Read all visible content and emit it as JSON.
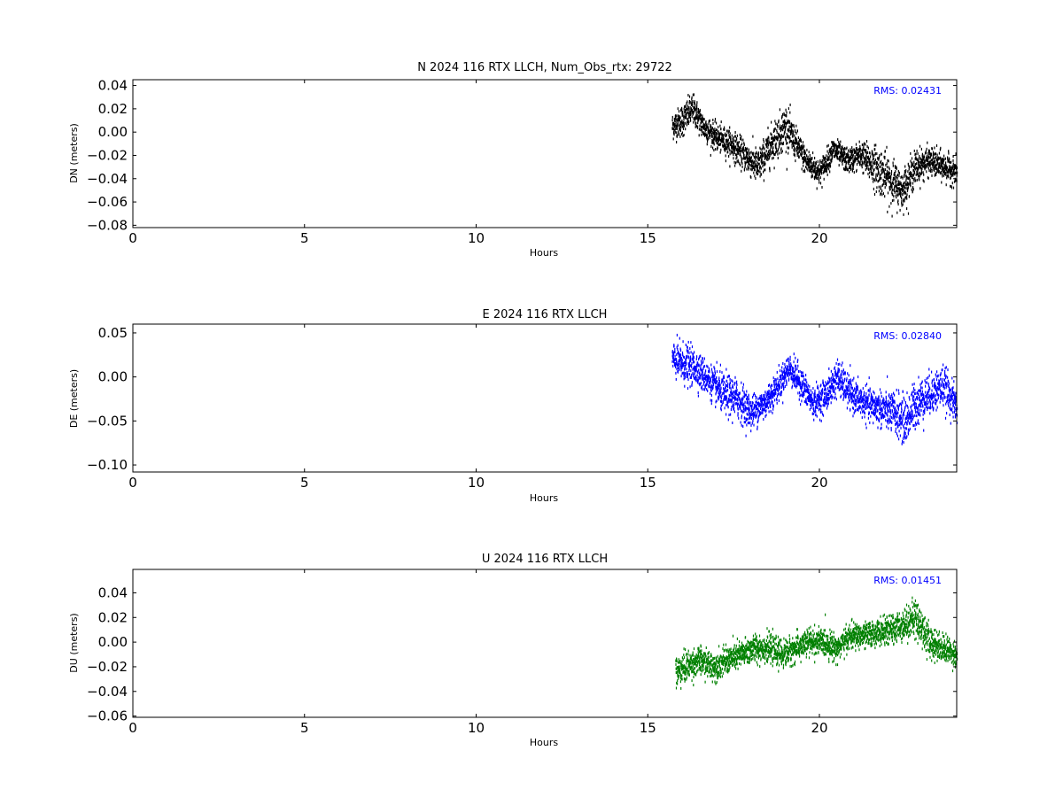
{
  "figure": {
    "background": "#ffffff",
    "panels": [
      {
        "title": "N 2024 116 RTX  LLCH, Num_Obs_rtx: 29722",
        "ylabel": "DN (meters)",
        "xlabel": "Hours",
        "rms_label": "RMS:  0.02431",
        "color": "#000000"
      },
      {
        "title": "E 2024 116 RTX  LLCH",
        "ylabel": "DE (meters)",
        "xlabel": "Hours",
        "rms_label": "RMS:  0.02840",
        "color": "#0000ff"
      },
      {
        "title": "U 2024 116 RTX  LLCH",
        "ylabel": "DU (meters)",
        "xlabel": "Hours",
        "rms_label": "RMS:  0.01451",
        "color": "#008000"
      }
    ],
    "rms_color": "#0000ff"
  },
  "chart_data": [
    {
      "type": "scatter",
      "title": "N 2024 116 RTX  LLCH, Num_Obs_rtx: 29722",
      "xlabel": "Hours",
      "ylabel": "DN (meters)",
      "xlim": [
        0,
        24
      ],
      "ylim": [
        -0.082,
        0.045
      ],
      "xticks": [
        0,
        5,
        10,
        15,
        20
      ],
      "yticks": [
        0.04,
        0.02,
        0.0,
        -0.02,
        -0.04,
        -0.06,
        -0.08
      ],
      "ytick_labels": [
        "0.04",
        "0.02",
        "0.00",
        "−0.02",
        "−0.04",
        "−0.06",
        "−0.08"
      ],
      "color": "#000000",
      "annotation": "RMS:  0.02431",
      "series": [
        {
          "x": [
            15.7,
            16.0,
            16.3,
            16.6,
            17.0,
            17.4,
            17.8,
            18.2,
            18.6,
            19.0,
            19.3,
            19.6,
            20.0,
            20.4,
            20.8,
            21.2,
            21.6,
            22.0,
            22.4,
            22.8,
            23.2,
            23.6,
            24.0
          ],
          "y": [
            0.005,
            0.01,
            0.02,
            0.005,
            -0.005,
            -0.01,
            -0.02,
            -0.03,
            -0.01,
            0.005,
            -0.01,
            -0.025,
            -0.035,
            -0.015,
            -0.025,
            -0.02,
            -0.03,
            -0.04,
            -0.05,
            -0.03,
            -0.025,
            -0.03,
            -0.035
          ],
          "spread": [
            0.012,
            0.015,
            0.014,
            0.013,
            0.012,
            0.013,
            0.014,
            0.016,
            0.018,
            0.02,
            0.015,
            0.013,
            0.012,
            0.011,
            0.011,
            0.013,
            0.02,
            0.022,
            0.018,
            0.016,
            0.013,
            0.013,
            0.012
          ]
        }
      ]
    },
    {
      "type": "scatter",
      "title": "E 2024 116 RTX  LLCH",
      "xlabel": "Hours",
      "ylabel": "DE (meters)",
      "xlim": [
        0,
        24
      ],
      "ylim": [
        -0.108,
        0.06
      ],
      "xticks": [
        0,
        5,
        10,
        15,
        20
      ],
      "yticks": [
        0.05,
        0.0,
        -0.05,
        -0.1
      ],
      "ytick_labels": [
        "0.05",
        "0.00",
        "−0.05",
        "−0.10"
      ],
      "color": "#0000ff",
      "annotation": "RMS:  0.02840",
      "series": [
        {
          "x": [
            15.7,
            16.0,
            16.4,
            16.8,
            17.2,
            17.6,
            18.0,
            18.4,
            18.8,
            19.1,
            19.4,
            19.8,
            20.2,
            20.5,
            20.9,
            21.3,
            21.7,
            22.1,
            22.5,
            22.8,
            23.2,
            23.6,
            24.0
          ],
          "y": [
            0.02,
            0.015,
            0.01,
            -0.005,
            -0.02,
            -0.025,
            -0.04,
            -0.03,
            -0.01,
            0.01,
            -0.005,
            -0.03,
            -0.02,
            0.0,
            -0.02,
            -0.03,
            -0.035,
            -0.04,
            -0.05,
            -0.03,
            -0.02,
            -0.01,
            -0.035
          ],
          "spread": [
            0.02,
            0.025,
            0.022,
            0.02,
            0.025,
            0.025,
            0.02,
            0.02,
            0.018,
            0.018,
            0.02,
            0.018,
            0.02,
            0.022,
            0.02,
            0.02,
            0.022,
            0.025,
            0.03,
            0.028,
            0.025,
            0.025,
            0.02
          ]
        }
      ]
    },
    {
      "type": "scatter",
      "title": "U 2024 116 RTX  LLCH",
      "xlabel": "Hours",
      "ylabel": "DU (meters)",
      "xlim": [
        0,
        24
      ],
      "ylim": [
        -0.061,
        0.059
      ],
      "xticks": [
        0,
        5,
        10,
        15,
        20
      ],
      "yticks": [
        0.04,
        0.02,
        0.0,
        -0.02,
        -0.04,
        -0.06
      ],
      "ytick_labels": [
        "0.04",
        "0.02",
        "0.00",
        "−0.02",
        "−0.04",
        "−0.06"
      ],
      "color": "#008000",
      "annotation": "RMS:  0.01451",
      "series": [
        {
          "x": [
            15.8,
            16.1,
            16.5,
            16.9,
            17.3,
            17.7,
            18.1,
            18.5,
            18.9,
            19.3,
            19.7,
            20.1,
            20.5,
            20.9,
            21.3,
            21.7,
            22.1,
            22.5,
            22.8,
            23.2,
            23.6,
            24.0
          ],
          "y": [
            -0.025,
            -0.02,
            -0.015,
            -0.02,
            -0.015,
            -0.01,
            -0.005,
            -0.005,
            -0.01,
            -0.005,
            0.0,
            0.0,
            -0.005,
            0.005,
            0.005,
            0.008,
            0.01,
            0.015,
            0.02,
            0.0,
            -0.005,
            -0.01
          ],
          "spread": [
            0.015,
            0.013,
            0.012,
            0.012,
            0.012,
            0.012,
            0.012,
            0.012,
            0.012,
            0.012,
            0.012,
            0.012,
            0.011,
            0.011,
            0.011,
            0.011,
            0.012,
            0.014,
            0.018,
            0.014,
            0.012,
            0.011
          ]
        }
      ]
    }
  ]
}
